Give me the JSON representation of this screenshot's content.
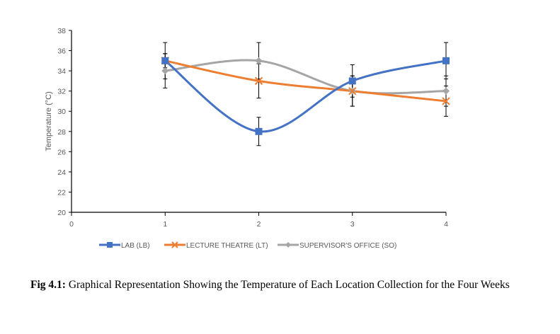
{
  "chart_data": {
    "type": "line",
    "title": "",
    "xlabel": "",
    "ylabel": "Temperature (°C)",
    "xlim": [
      0,
      4
    ],
    "ylim": [
      20,
      38
    ],
    "x_ticks": [
      "0",
      "1",
      "2",
      "3",
      "4"
    ],
    "y_ticks": [
      "20",
      "22",
      "24",
      "26",
      "28",
      "30",
      "32",
      "34",
      "36",
      "38"
    ],
    "grid": false,
    "legend_position": "bottom",
    "x": [
      1,
      2,
      3,
      4
    ],
    "series": [
      {
        "name": "LAB (LB)",
        "values": [
          35,
          28,
          33,
          35
        ],
        "error": [
          1.8,
          1.4,
          1.6,
          1.8
        ],
        "color": "#4472C4",
        "marker": "square"
      },
      {
        "name": "LECTURE THEATRE (LT)",
        "values": [
          35,
          33,
          32,
          31
        ],
        "error": [
          0.7,
          1.7,
          1.5,
          1.5
        ],
        "color": "#ED7D31",
        "marker": "x"
      },
      {
        "name": "SUPERVISOR'S OFFICE (SO)",
        "values": [
          34,
          35,
          32,
          32
        ],
        "error": [
          1.7,
          1.8,
          1.5,
          1.5
        ],
        "color": "#A5A5A5",
        "marker": "diamond"
      }
    ]
  },
  "caption": {
    "label": "Fig 4.1:",
    "text": " Graphical Representation Showing the Temperature of Each Location Collection for the Four Weeks"
  }
}
